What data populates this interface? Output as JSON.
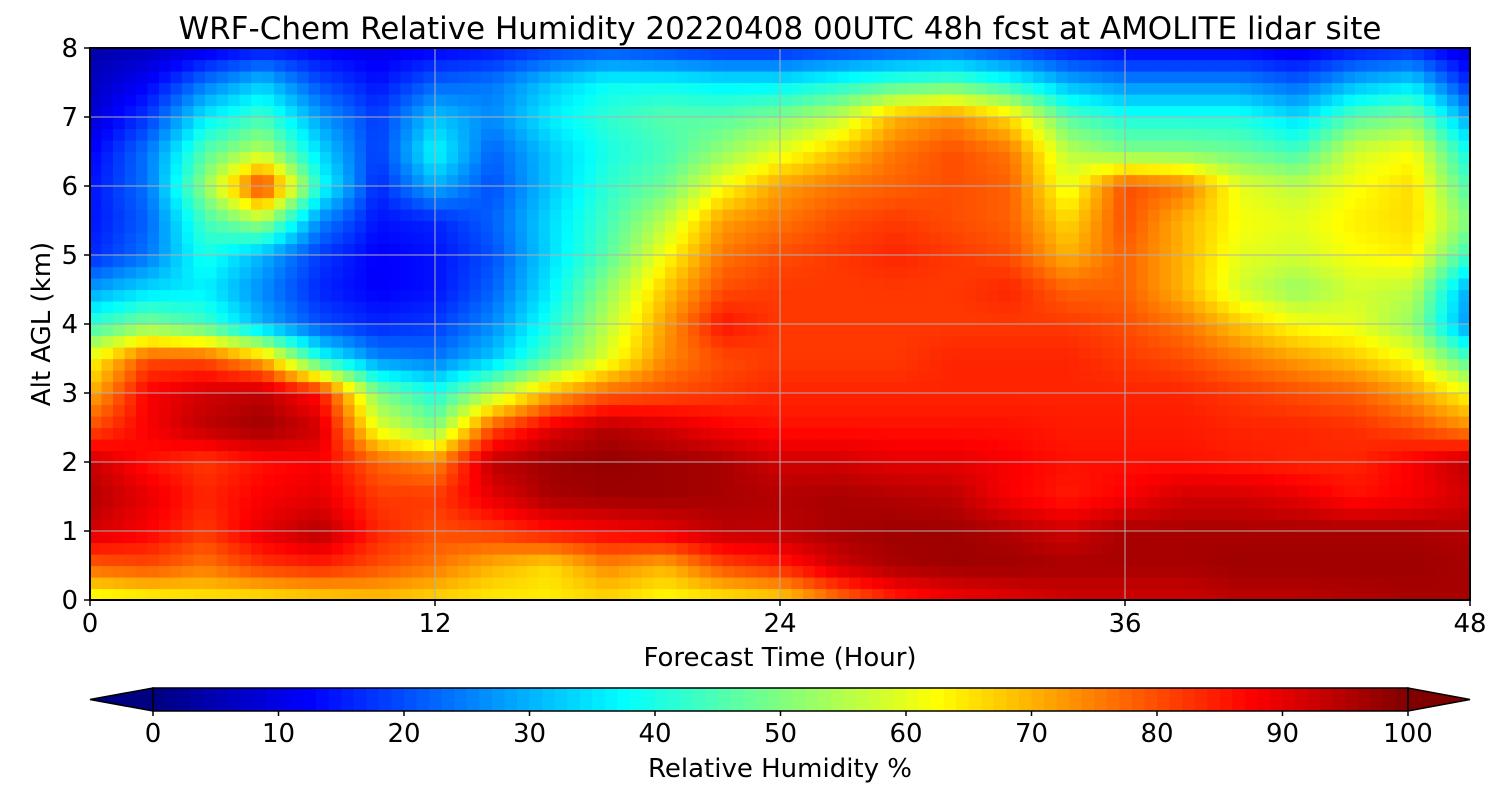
{
  "chart_data": {
    "type": "heatmap",
    "title": "WRF-Chem Relative Humidity 20220408 00UTC 48h fcst at AMOLITE lidar site",
    "xlabel": "Forecast Time (Hour)",
    "ylabel": "Alt AGL (km)",
    "xlim": [
      0,
      48
    ],
    "ylim": [
      0,
      8
    ],
    "x_ticks": [
      0,
      12,
      24,
      36,
      48
    ],
    "y_ticks": [
      0,
      1,
      2,
      3,
      4,
      5,
      6,
      7,
      8
    ],
    "grid": true,
    "colormap": "jet",
    "colorbar": {
      "label": "Relative Humidity %",
      "range": [
        0,
        100
      ],
      "ticks": [
        0,
        10,
        20,
        30,
        40,
        50,
        60,
        70,
        80,
        90,
        100
      ],
      "extend": "both",
      "orientation": "horizontal"
    },
    "x": [
      0,
      2,
      4,
      6,
      8,
      10,
      12,
      14,
      16,
      18,
      20,
      22,
      24,
      26,
      28,
      30,
      32,
      34,
      36,
      38,
      40,
      42,
      44,
      46,
      48
    ],
    "y": [
      0,
      0.5,
      1,
      1.5,
      2,
      2.5,
      3,
      3.5,
      4,
      4.5,
      5,
      5.5,
      6,
      6.5,
      7,
      7.5,
      8
    ],
    "z": [
      [
        60,
        62,
        64,
        64,
        66,
        68,
        66,
        64,
        64,
        66,
        62,
        64,
        66,
        76,
        84,
        88,
        90,
        92,
        92,
        92,
        94,
        94,
        95,
        96,
        96
      ],
      [
        78,
        80,
        76,
        82,
        84,
        80,
        76,
        70,
        66,
        74,
        70,
        80,
        84,
        92,
        96,
        97,
        97,
        96,
        96,
        96,
        97,
        97,
        97,
        97,
        96
      ],
      [
        92,
        88,
        82,
        90,
        95,
        84,
        80,
        82,
        86,
        88,
        90,
        94,
        94,
        96,
        97,
        97,
        95,
        92,
        96,
        96,
        96,
        96,
        96,
        96,
        95
      ],
      [
        95,
        90,
        84,
        88,
        90,
        82,
        82,
        90,
        96,
        97,
        97,
        96,
        95,
        96,
        95,
        94,
        88,
        85,
        88,
        92,
        92,
        90,
        86,
        88,
        92
      ],
      [
        93,
        86,
        82,
        86,
        88,
        78,
        74,
        94,
        97,
        98,
        97,
        96,
        92,
        92,
        90,
        90,
        88,
        86,
        86,
        86,
        85,
        84,
        84,
        88,
        94
      ],
      [
        80,
        88,
        94,
        97,
        92,
        60,
        50,
        80,
        90,
        95,
        92,
        88,
        86,
        86,
        86,
        86,
        86,
        85,
        85,
        85,
        84,
        84,
        83,
        80,
        74
      ],
      [
        70,
        88,
        92,
        94,
        86,
        50,
        40,
        55,
        70,
        78,
        80,
        82,
        84,
        84,
        84,
        84,
        84,
        84,
        84,
        84,
        82,
        80,
        78,
        72,
        62
      ],
      [
        62,
        80,
        80,
        70,
        40,
        26,
        24,
        32,
        46,
        60,
        74,
        80,
        82,
        82,
        82,
        84,
        84,
        84,
        82,
        80,
        76,
        72,
        68,
        62,
        44
      ],
      [
        42,
        50,
        44,
        30,
        20,
        16,
        18,
        26,
        40,
        56,
        72,
        86,
        82,
        82,
        82,
        82,
        82,
        82,
        80,
        76,
        68,
        62,
        60,
        52,
        26
      ],
      [
        28,
        34,
        36,
        26,
        16,
        12,
        14,
        22,
        36,
        52,
        68,
        80,
        82,
        82,
        82,
        82,
        84,
        78,
        78,
        70,
        58,
        52,
        58,
        56,
        28
      ],
      [
        16,
        24,
        40,
        30,
        18,
        12,
        14,
        20,
        34,
        46,
        62,
        76,
        80,
        82,
        84,
        82,
        80,
        70,
        78,
        70,
        60,
        58,
        62,
        64,
        42
      ],
      [
        14,
        22,
        44,
        54,
        26,
        14,
        16,
        22,
        34,
        44,
        56,
        72,
        76,
        80,
        82,
        80,
        78,
        66,
        80,
        70,
        62,
        60,
        64,
        66,
        50
      ],
      [
        14,
        24,
        52,
        84,
        40,
        16,
        30,
        20,
        32,
        42,
        48,
        62,
        72,
        76,
        78,
        80,
        78,
        60,
        80,
        76,
        60,
        56,
        62,
        66,
        44
      ],
      [
        12,
        24,
        46,
        56,
        34,
        18,
        38,
        22,
        32,
        40,
        44,
        52,
        60,
        68,
        76,
        80,
        76,
        56,
        50,
        50,
        48,
        44,
        58,
        62,
        38
      ],
      [
        8,
        18,
        36,
        44,
        28,
        18,
        32,
        26,
        36,
        42,
        46,
        46,
        50,
        56,
        70,
        74,
        66,
        46,
        40,
        40,
        40,
        34,
        46,
        50,
        28
      ],
      [
        6,
        12,
        24,
        32,
        20,
        14,
        22,
        24,
        32,
        38,
        38,
        36,
        36,
        40,
        44,
        46,
        40,
        30,
        26,
        26,
        26,
        22,
        30,
        34,
        16
      ],
      [
        4,
        6,
        10,
        14,
        12,
        10,
        12,
        14,
        18,
        20,
        18,
        16,
        16,
        18,
        20,
        22,
        18,
        14,
        12,
        12,
        12,
        10,
        14,
        16,
        8
      ]
    ]
  }
}
